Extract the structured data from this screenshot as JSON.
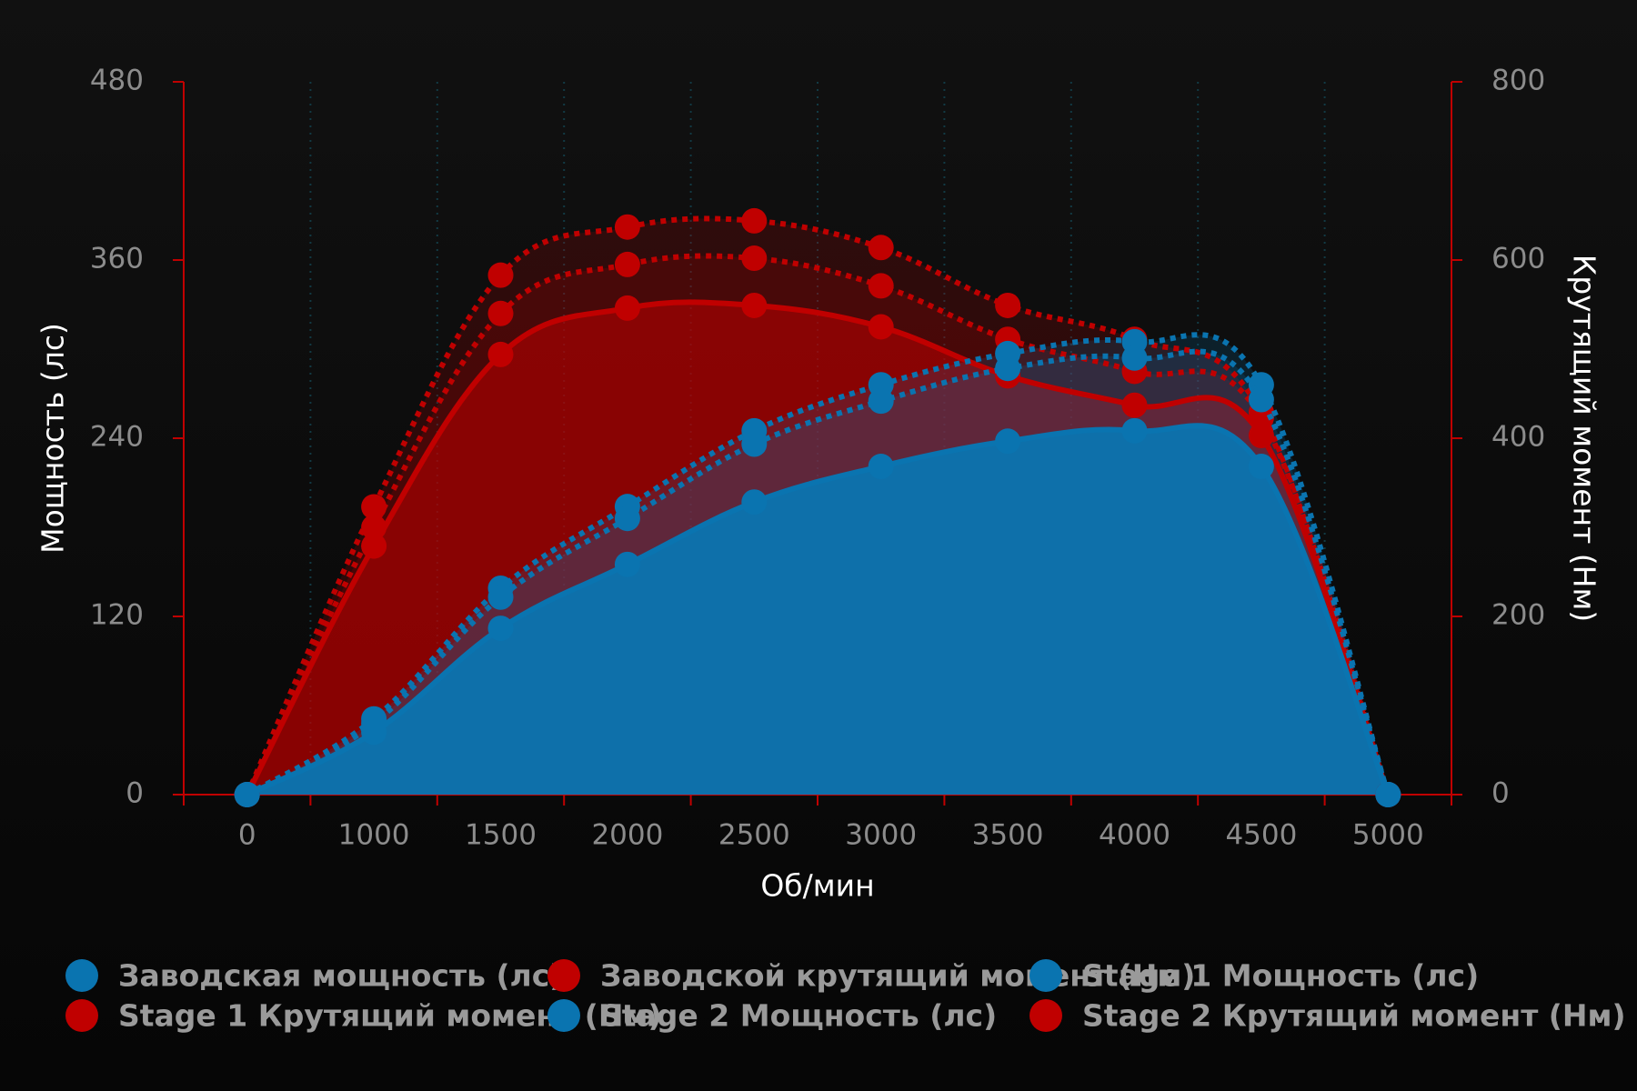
{
  "chart_data": {
    "type": "area",
    "x_label": "Об/мин",
    "y_label": "Мощность (лс)",
    "y2_label": "Крутящий момент (Нм)",
    "categories": [
      "0",
      "1000",
      "1500",
      "2000",
      "2500",
      "3000",
      "3500",
      "4000",
      "4500",
      "5000"
    ],
    "ylim": [
      0,
      480
    ],
    "yticks": [
      0,
      120,
      240,
      360,
      480
    ],
    "y2lim": [
      0,
      800
    ],
    "y2ticks": [
      0,
      200,
      400,
      600,
      800
    ],
    "grid": true,
    "series": [
      {
        "name": "Заводская мощность (лс)",
        "color": "#0a74b0",
        "style": "solid",
        "values": [
          0,
          42,
          112,
          155,
          197,
          221,
          238,
          245,
          221,
          0
        ]
      },
      {
        "name": "Заводской крутящий момент (Нм)",
        "color": "#c00000",
        "style": "solid",
        "axis": "y2",
        "values": [
          0,
          279,
          494,
          546,
          549,
          525,
          470,
          437,
          403,
          0
        ]
      },
      {
        "name": "Stage 1 Мощность (лс)",
        "color": "#0a74b0",
        "style": "dotted",
        "values": [
          0,
          48,
          133,
          186,
          236,
          265,
          287,
          294,
          266,
          0
        ]
      },
      {
        "name": "Stage 1 Крутящий момент (Нм)",
        "color": "#c00000",
        "style": "dotted",
        "axis": "y2",
        "values": [
          0,
          300,
          540,
          595,
          602,
          571,
          511,
          475,
          423,
          0
        ]
      },
      {
        "name": "Stage 2 Мощность (лс)",
        "color": "#0a74b0",
        "style": "dotted",
        "values": [
          0,
          51,
          139,
          194,
          245,
          276,
          297,
          305,
          276,
          0
        ]
      },
      {
        "name": "Stage 2 Крутящий момент (Нм)",
        "color": "#c00000",
        "style": "dotted",
        "axis": "y2",
        "values": [
          0,
          323,
          583,
          637,
          644,
          614,
          549,
          511,
          429,
          0
        ]
      }
    ]
  }
}
